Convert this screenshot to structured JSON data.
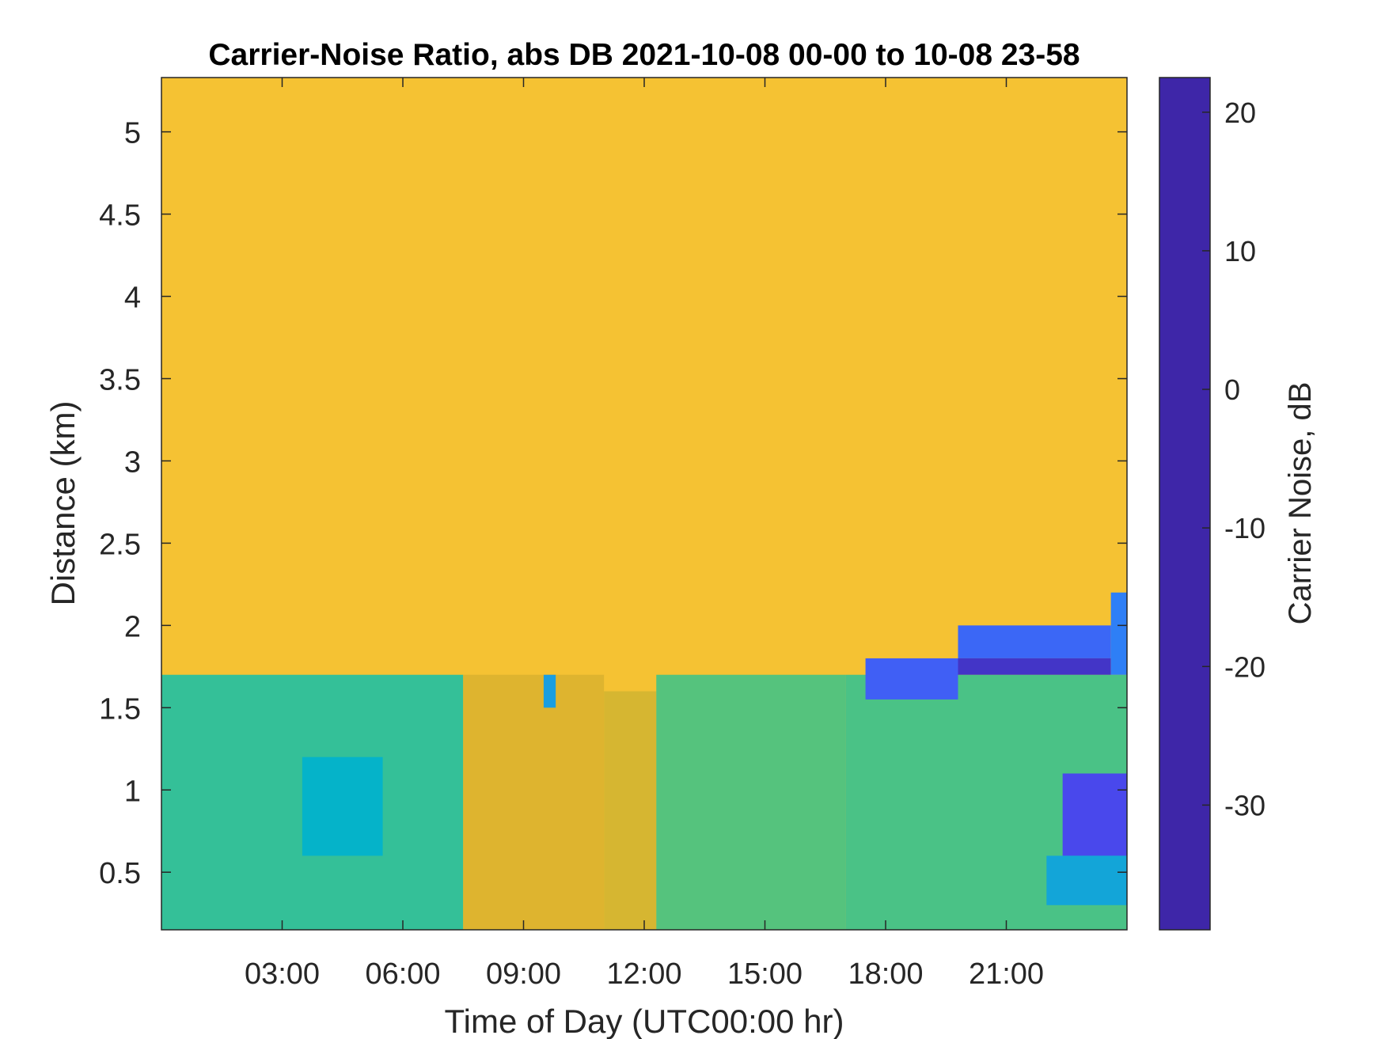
{
  "chart_data": {
    "type": "heatmap",
    "title": "Carrier-Noise Ratio, abs DB 2021-10-08 00-00 to 10-08 23-58",
    "xlabel": "Time of Day (UTC00:00 hr)",
    "ylabel": "Distance (km)",
    "colorbar_label": "Carrier Noise, dB",
    "xlim": [
      0,
      24
    ],
    "ylim": [
      0.15,
      5.33
    ],
    "clim": [
      -39,
      22.5
    ],
    "x_ticks": [
      3,
      6,
      9,
      12,
      15,
      18,
      21
    ],
    "x_tick_labels": [
      "03:00",
      "06:00",
      "09:00",
      "12:00",
      "15:00",
      "18:00",
      "21:00"
    ],
    "y_ticks": [
      0.5,
      1,
      1.5,
      2,
      2.5,
      3,
      3.5,
      4,
      4.5,
      5
    ],
    "y_tick_labels": [
      "0.5",
      "1",
      "1.5",
      "2",
      "2.5",
      "3",
      "3.5",
      "4",
      "4.5",
      "5"
    ],
    "colorbar_ticks": [
      20,
      10,
      0,
      -10,
      -20,
      -30
    ],
    "colorbar_tick_labels": [
      "20",
      "10",
      "0",
      "-10",
      "-20",
      "-30"
    ],
    "colormap": "parula",
    "colormap_stops": [
      "#3e26a8",
      "#4a4cf4",
      "#2f7ef7",
      "#1a9ee0",
      "#05b3c9",
      "#2cbf9f",
      "#6fc568",
      "#b3bd3a",
      "#e4b32e",
      "#fdc835",
      "#f9fb15"
    ],
    "background_level_db": -31,
    "regions": [
      {
        "x": [
          0,
          24
        ],
        "y": [
          1.8,
          5.33
        ],
        "value": -31
      },
      {
        "x": [
          0,
          7.5
        ],
        "y": [
          0.15,
          1.7
        ],
        "value": -9
      },
      {
        "x": [
          7.5,
          11
        ],
        "y": [
          0.15,
          1.7
        ],
        "value": -26
      },
      {
        "x": [
          11,
          12.3
        ],
        "y": [
          0.15,
          1.6
        ],
        "value": -25
      },
      {
        "x": [
          12.3,
          17
        ],
        "y": [
          0.15,
          1.7
        ],
        "value": -12
      },
      {
        "x": [
          17,
          24
        ],
        "y": [
          0.15,
          1.7
        ],
        "value": -11
      },
      {
        "x": [
          3.5,
          5.5
        ],
        "y": [
          0.6,
          1.2
        ],
        "value": -2
      },
      {
        "x": [
          17.5,
          19.8
        ],
        "y": [
          1.55,
          1.8
        ],
        "value": 14
      },
      {
        "x": [
          19.8,
          23.6
        ],
        "y": [
          1.8,
          2.0
        ],
        "value": 13
      },
      {
        "x": [
          19.8,
          23.6
        ],
        "y": [
          1.7,
          1.8
        ],
        "value": 20
      },
      {
        "x": [
          23.6,
          24
        ],
        "y": [
          1.7,
          2.2
        ],
        "value": 10
      },
      {
        "x": [
          22.4,
          24
        ],
        "y": [
          0.6,
          1.1
        ],
        "value": 17
      },
      {
        "x": [
          22.0,
          24
        ],
        "y": [
          0.3,
          0.6
        ],
        "value": 2
      },
      {
        "x": [
          9.5,
          9.8
        ],
        "y": [
          1.5,
          1.7
        ],
        "value": 4
      }
    ]
  }
}
